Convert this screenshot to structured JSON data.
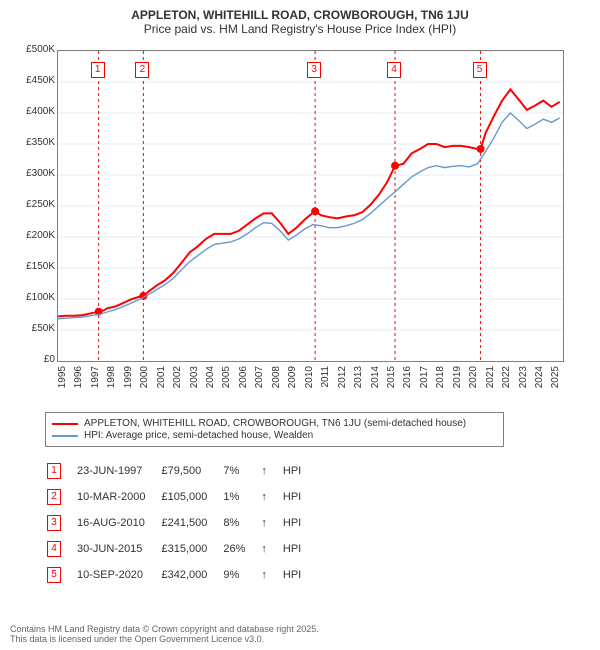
{
  "title_line1": "APPLETON, WHITEHILL ROAD, CROWBOROUGH, TN6 1JU",
  "title_line2": "Price paid vs. HM Land Registry's House Price Index (HPI)",
  "chart": {
    "type": "line",
    "background_color": "#ffffff",
    "grid_color": "#e6ecf2",
    "border_color": "#808080",
    "xlim": [
      1995,
      2025.7
    ],
    "ylim": [
      0,
      500000
    ],
    "ytick_step": 50000,
    "yticks": [
      "£0",
      "£50K",
      "£100K",
      "£150K",
      "£200K",
      "£250K",
      "£300K",
      "£350K",
      "£400K",
      "£450K",
      "£500K"
    ],
    "xticks": [
      "1995",
      "1996",
      "1997",
      "1998",
      "1999",
      "2000",
      "2001",
      "2002",
      "2003",
      "2004",
      "2005",
      "2006",
      "2007",
      "2008",
      "2009",
      "2010",
      "2011",
      "2012",
      "2013",
      "2014",
      "2015",
      "2016",
      "2017",
      "2018",
      "2019",
      "2020",
      "2021",
      "2022",
      "2023",
      "2024",
      "2025"
    ],
    "series": [
      {
        "name": "APPLETON, WHITEHILL ROAD, CROWBOROUGH, TN6 1JU (semi-detached house)",
        "color": "#ff0000",
        "line_width": 2,
        "data": [
          [
            1995,
            72000
          ],
          [
            1995.5,
            73000
          ],
          [
            1996,
            73000
          ],
          [
            1996.5,
            74000
          ],
          [
            1997,
            77000
          ],
          [
            1997.47,
            79500
          ],
          [
            1997.8,
            82000
          ],
          [
            1998,
            85000
          ],
          [
            1998.5,
            88000
          ],
          [
            1999,
            94000
          ],
          [
            1999.5,
            100000
          ],
          [
            2000,
            104000
          ],
          [
            2000.19,
            105000
          ],
          [
            2000.5,
            112000
          ],
          [
            2001,
            122000
          ],
          [
            2001.5,
            130000
          ],
          [
            2002,
            142000
          ],
          [
            2002.5,
            158000
          ],
          [
            2003,
            175000
          ],
          [
            2003.5,
            185000
          ],
          [
            2004,
            197000
          ],
          [
            2004.5,
            205000
          ],
          [
            2005,
            205000
          ],
          [
            2005.5,
            205000
          ],
          [
            2006,
            210000
          ],
          [
            2006.5,
            220000
          ],
          [
            2007,
            230000
          ],
          [
            2007.5,
            238000
          ],
          [
            2008,
            238000
          ],
          [
            2008.5,
            223000
          ],
          [
            2009,
            205000
          ],
          [
            2009.5,
            215000
          ],
          [
            2010,
            228000
          ],
          [
            2010.6,
            241500
          ],
          [
            2010.63,
            241500
          ],
          [
            2011,
            235000
          ],
          [
            2011.5,
            232000
          ],
          [
            2012,
            230000
          ],
          [
            2012.5,
            233000
          ],
          [
            2013,
            235000
          ],
          [
            2013.5,
            240000
          ],
          [
            2014,
            252000
          ],
          [
            2014.5,
            268000
          ],
          [
            2015,
            288000
          ],
          [
            2015.49,
            315000
          ],
          [
            2015.5,
            315000
          ],
          [
            2016,
            318000
          ],
          [
            2016.5,
            335000
          ],
          [
            2017,
            342000
          ],
          [
            2017.5,
            350000
          ],
          [
            2018,
            350000
          ],
          [
            2018.5,
            345000
          ],
          [
            2019,
            347000
          ],
          [
            2019.5,
            347000
          ],
          [
            2020,
            345000
          ],
          [
            2020.5,
            342000
          ],
          [
            2020.69,
            342000
          ],
          [
            2021,
            368000
          ],
          [
            2021.5,
            395000
          ],
          [
            2022,
            420000
          ],
          [
            2022.5,
            438000
          ],
          [
            2023,
            422000
          ],
          [
            2023.5,
            405000
          ],
          [
            2024,
            412000
          ],
          [
            2024.5,
            420000
          ],
          [
            2025,
            410000
          ],
          [
            2025.5,
            418000
          ]
        ],
        "markers": [
          {
            "x": 1997.47,
            "y": 79500
          },
          {
            "x": 2000.19,
            "y": 105000
          },
          {
            "x": 2010.63,
            "y": 241500
          },
          {
            "x": 2015.49,
            "y": 315000
          },
          {
            "x": 2020.69,
            "y": 342000
          }
        ],
        "marker_color": "#ff0000",
        "marker_size": 4
      },
      {
        "name": "HPI: Average price, semi-detached house, Wealden",
        "color": "#6699cc",
        "line_width": 1.4,
        "data": [
          [
            1995,
            68000
          ],
          [
            1995.5,
            69000
          ],
          [
            1996,
            70000
          ],
          [
            1996.5,
            71000
          ],
          [
            1997,
            73000
          ],
          [
            1997.5,
            75000
          ],
          [
            1998,
            79000
          ],
          [
            1998.5,
            83000
          ],
          [
            1999,
            88000
          ],
          [
            1999.5,
            94000
          ],
          [
            2000,
            100000
          ],
          [
            2000.5,
            107000
          ],
          [
            2001,
            115000
          ],
          [
            2001.5,
            123000
          ],
          [
            2002,
            133000
          ],
          [
            2002.5,
            147000
          ],
          [
            2003,
            160000
          ],
          [
            2003.5,
            170000
          ],
          [
            2004,
            180000
          ],
          [
            2004.5,
            188000
          ],
          [
            2005,
            190000
          ],
          [
            2005.5,
            192000
          ],
          [
            2006,
            197000
          ],
          [
            2006.5,
            205000
          ],
          [
            2007,
            215000
          ],
          [
            2007.5,
            223000
          ],
          [
            2008,
            222000
          ],
          [
            2008.5,
            210000
          ],
          [
            2009,
            195000
          ],
          [
            2009.5,
            203000
          ],
          [
            2010,
            213000
          ],
          [
            2010.5,
            220000
          ],
          [
            2011,
            218000
          ],
          [
            2011.5,
            215000
          ],
          [
            2012,
            215000
          ],
          [
            2012.5,
            218000
          ],
          [
            2013,
            222000
          ],
          [
            2013.5,
            228000
          ],
          [
            2014,
            238000
          ],
          [
            2014.5,
            250000
          ],
          [
            2015,
            262000
          ],
          [
            2015.5,
            273000
          ],
          [
            2016,
            285000
          ],
          [
            2016.5,
            297000
          ],
          [
            2017,
            305000
          ],
          [
            2017.5,
            312000
          ],
          [
            2018,
            315000
          ],
          [
            2018.5,
            312000
          ],
          [
            2019,
            314000
          ],
          [
            2019.5,
            315000
          ],
          [
            2020,
            313000
          ],
          [
            2020.5,
            318000
          ],
          [
            2021,
            338000
          ],
          [
            2021.5,
            360000
          ],
          [
            2022,
            385000
          ],
          [
            2022.5,
            400000
          ],
          [
            2023,
            388000
          ],
          [
            2023.5,
            375000
          ],
          [
            2024,
            382000
          ],
          [
            2024.5,
            390000
          ],
          [
            2025,
            385000
          ],
          [
            2025.5,
            392000
          ]
        ]
      }
    ],
    "event_lines": [
      1997.47,
      2000.19,
      2010.63,
      2015.49,
      2020.69
    ],
    "event_boxes": [
      "1",
      "2",
      "3",
      "4",
      "5"
    ]
  },
  "legend": {
    "items": [
      {
        "color": "#ff0000",
        "label": "APPLETON, WHITEHILL ROAD, CROWBOROUGH, TN6 1JU (semi-detached house)"
      },
      {
        "color": "#6699cc",
        "label": "HPI: Average price, semi-detached house, Wealden"
      }
    ]
  },
  "sales": [
    {
      "n": "1",
      "date": "23-JUN-1997",
      "price": "£79,500",
      "pct": "7%",
      "dir": "↑",
      "suffix": "HPI"
    },
    {
      "n": "2",
      "date": "10-MAR-2000",
      "price": "£105,000",
      "pct": "1%",
      "dir": "↑",
      "suffix": "HPI"
    },
    {
      "n": "3",
      "date": "16-AUG-2010",
      "price": "£241,500",
      "pct": "8%",
      "dir": "↑",
      "suffix": "HPI"
    },
    {
      "n": "4",
      "date": "30-JUN-2015",
      "price": "£315,000",
      "pct": "26%",
      "dir": "↑",
      "suffix": "HPI"
    },
    {
      "n": "5",
      "date": "10-SEP-2020",
      "price": "£342,000",
      "pct": "9%",
      "dir": "↑",
      "suffix": "HPI"
    }
  ],
  "footer_line1": "Contains HM Land Registry data © Crown copyright and database right 2025.",
  "footer_line2": "This data is licensed under the Open Government Licence v3.0."
}
